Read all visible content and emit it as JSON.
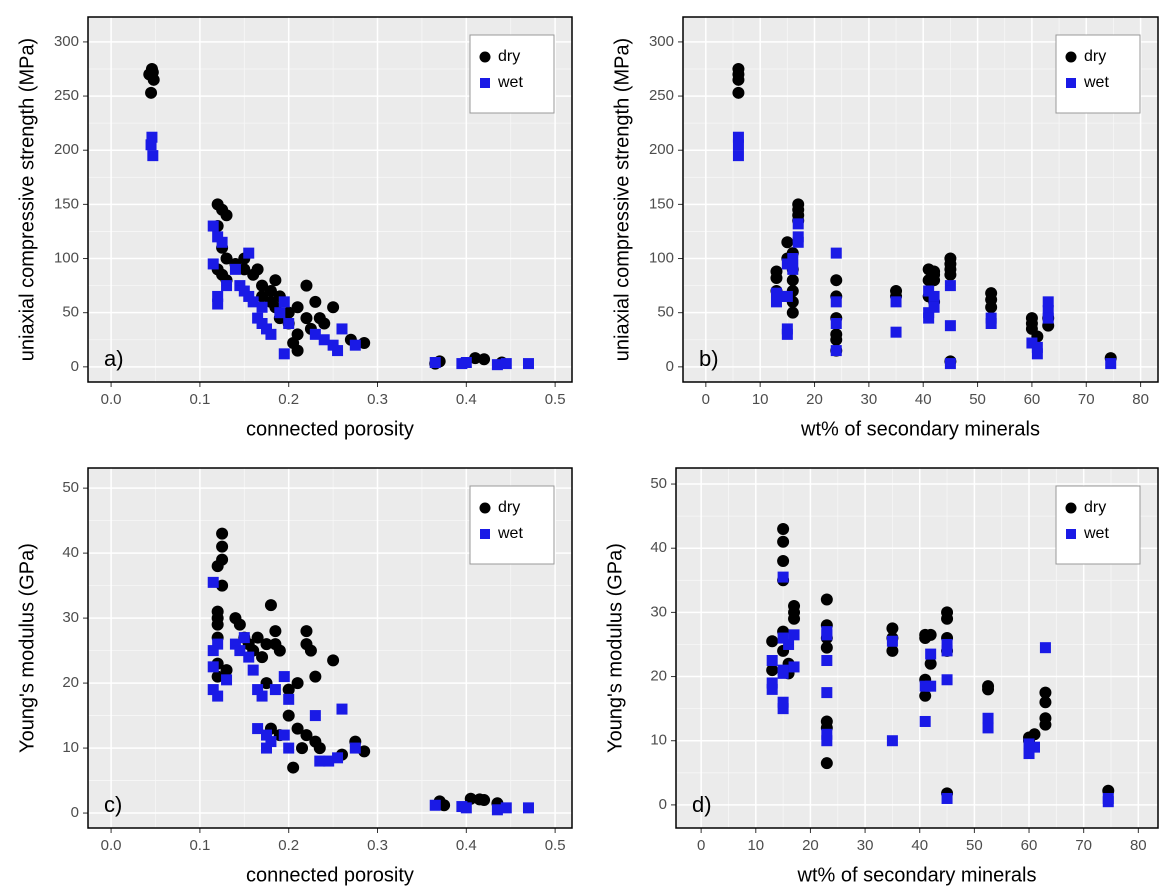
{
  "chart_data": [
    {
      "type": "scatter",
      "annotation": "a)",
      "x_label": "connected porosity",
      "y_label": "uniaxial compressive strength (MPa)",
      "xlim": [
        -0.026,
        0.519
      ],
      "xticks": [
        {
          "value": 0,
          "label": "0.0"
        },
        0.1,
        0.2,
        0.3,
        0.4,
        0.5
      ],
      "ylim": [
        -14,
        323
      ],
      "yticks": [
        0,
        50,
        100,
        150,
        200,
        250,
        300
      ],
      "grid": true,
      "legend": "top-right",
      "series": [
        {
          "name": "dry",
          "color": "#000000",
          "marker": "circle",
          "x": [
            0.043,
            0.046,
            0.047,
            0.048,
            0.045,
            0.12,
            0.125,
            0.13,
            0.12,
            0.125,
            0.13,
            0.12,
            0.125,
            0.13,
            0.14,
            0.15,
            0.15,
            0.16,
            0.165,
            0.17,
            0.17,
            0.18,
            0.18,
            0.185,
            0.185,
            0.19,
            0.19,
            0.2,
            0.2,
            0.21,
            0.21,
            0.22,
            0.22,
            0.225,
            0.23,
            0.235,
            0.24,
            0.25,
            0.27,
            0.285,
            0.21,
            0.205,
            0.37,
            0.365,
            0.41,
            0.42,
            0.44
          ],
          "values": [
            270,
            275,
            272,
            265,
            253,
            150,
            145,
            140,
            130,
            110,
            100,
            90,
            85,
            80,
            95,
            100,
            90,
            85,
            90,
            75,
            65,
            70,
            60,
            55,
            80,
            65,
            45,
            50,
            40,
            55,
            30,
            75,
            45,
            35,
            60,
            45,
            40,
            55,
            25,
            22,
            15,
            22,
            5,
            3,
            8,
            7,
            4
          ]
        },
        {
          "name": "wet",
          "color": "#1a1ae6",
          "marker": "square",
          "x": [
            0.046,
            0.045,
            0.047,
            0.115,
            0.12,
            0.125,
            0.115,
            0.12,
            0.12,
            0.13,
            0.14,
            0.145,
            0.15,
            0.155,
            0.155,
            0.16,
            0.165,
            0.17,
            0.17,
            0.175,
            0.18,
            0.19,
            0.195,
            0.195,
            0.2,
            0.23,
            0.24,
            0.25,
            0.255,
            0.26,
            0.275,
            0.365,
            0.395,
            0.4,
            0.435,
            0.445,
            0.47
          ],
          "values": [
            212,
            205,
            195,
            130,
            120,
            115,
            95,
            65,
            58,
            75,
            90,
            75,
            70,
            65,
            105,
            60,
            45,
            55,
            40,
            35,
            30,
            50,
            60,
            12,
            40,
            30,
            25,
            20,
            15,
            35,
            20,
            4,
            3,
            4,
            2,
            3,
            3
          ]
        }
      ]
    },
    {
      "type": "scatter",
      "annotation": "b)",
      "x_label": "wt% of secondary minerals",
      "y_label": "uniaxial compressive strength (MPa)",
      "xlim": [
        -4.2,
        83.2
      ],
      "xticks": [
        0,
        10,
        20,
        30,
        40,
        50,
        60,
        70,
        80
      ],
      "ylim": [
        -14,
        323
      ],
      "yticks": [
        0,
        50,
        100,
        150,
        200,
        250,
        300
      ],
      "grid": true,
      "legend": "top-right",
      "series": [
        {
          "name": "dry",
          "color": "#000000",
          "marker": "circle",
          "x": [
            6,
            6,
            6,
            6,
            13,
            13,
            13,
            15,
            15,
            16,
            16,
            16,
            16,
            16,
            16,
            17,
            17,
            17,
            17,
            24,
            24,
            24,
            24,
            24,
            24,
            35,
            35,
            41,
            41,
            41,
            42,
            42,
            42,
            42,
            45,
            45,
            45,
            45,
            45,
            52.5,
            52.5,
            52.5,
            60,
            60,
            60,
            61,
            63,
            63,
            74.5
          ],
          "values": [
            275,
            270,
            265,
            253,
            88,
            82,
            70,
            115,
            100,
            105,
            90,
            80,
            70,
            60,
            50,
            150,
            145,
            140,
            135,
            80,
            65,
            45,
            30,
            25,
            15,
            70,
            65,
            90,
            80,
            65,
            88,
            85,
            80,
            60,
            100,
            95,
            90,
            85,
            5,
            68,
            62,
            55,
            45,
            40,
            35,
            28,
            45,
            38,
            8
          ]
        },
        {
          "name": "wet",
          "color": "#1a1ae6",
          "marker": "square",
          "x": [
            6,
            6,
            6,
            13,
            13,
            14,
            15,
            15,
            15,
            15,
            16,
            16,
            17,
            17,
            17,
            24,
            24,
            24,
            24,
            35,
            35,
            41,
            41,
            41,
            42,
            42,
            45,
            45,
            45,
            52.5,
            52.5,
            60,
            61,
            61,
            63,
            63,
            63,
            74.5
          ],
          "values": [
            212,
            205,
            195,
            68,
            60,
            65,
            95,
            65,
            35,
            30,
            100,
            90,
            132,
            120,
            115,
            105,
            60,
            40,
            15,
            60,
            32,
            70,
            50,
            45,
            65,
            55,
            75,
            38,
            3,
            45,
            40,
            22,
            12,
            18,
            60,
            52,
            45,
            3
          ]
        }
      ]
    },
    {
      "type": "scatter",
      "annotation": "c)",
      "x_label": "connected porosity",
      "y_label": "Young's modulus (GPa)",
      "xlim": [
        -0.026,
        0.519
      ],
      "xticks": [
        {
          "value": 0,
          "label": "0.0"
        },
        0.1,
        0.2,
        0.3,
        0.4,
        0.5
      ],
      "ylim": [
        -2.3,
        53.1
      ],
      "yticks": [
        0,
        10,
        20,
        30,
        40,
        50
      ],
      "grid": true,
      "legend": "top-right",
      "series": [
        {
          "name": "dry",
          "color": "#000000",
          "marker": "circle",
          "x": [
            0.125,
            0.125,
            0.125,
            0.12,
            0.125,
            0.12,
            0.12,
            0.12,
            0.12,
            0.12,
            0.12,
            0.13,
            0.14,
            0.145,
            0.15,
            0.155,
            0.16,
            0.165,
            0.17,
            0.175,
            0.18,
            0.185,
            0.185,
            0.19,
            0.175,
            0.18,
            0.19,
            0.2,
            0.2,
            0.21,
            0.21,
            0.22,
            0.22,
            0.225,
            0.23,
            0.25,
            0.205,
            0.215,
            0.22,
            0.23,
            0.235,
            0.26,
            0.275,
            0.285,
            0.37,
            0.375,
            0.405,
            0.415,
            0.42,
            0.435
          ],
          "values": [
            43,
            41,
            39,
            38,
            35,
            31,
            30,
            29,
            27,
            23,
            21,
            22,
            30,
            29,
            27,
            26,
            25,
            27,
            24,
            26,
            32,
            28,
            26,
            25,
            20,
            13,
            12,
            19,
            15,
            20,
            13,
            26,
            28,
            25,
            21,
            23.5,
            7,
            10,
            12,
            11,
            10,
            9,
            11,
            9.5,
            1.8,
            1.2,
            2.2,
            2.1,
            2,
            1.5
          ]
        },
        {
          "name": "wet",
          "color": "#1a1ae6",
          "marker": "square",
          "x": [
            0.115,
            0.115,
            0.12,
            0.115,
            0.115,
            0.12,
            0.13,
            0.14,
            0.145,
            0.15,
            0.155,
            0.16,
            0.165,
            0.165,
            0.17,
            0.175,
            0.175,
            0.18,
            0.185,
            0.195,
            0.195,
            0.2,
            0.2,
            0.23,
            0.235,
            0.245,
            0.255,
            0.26,
            0.275,
            0.365,
            0.395,
            0.4,
            0.435,
            0.445,
            0.47
          ],
          "values": [
            35.5,
            25,
            26,
            22.5,
            19,
            18,
            20.5,
            26,
            25,
            27,
            24,
            22,
            19,
            13,
            18,
            10,
            12,
            11,
            19,
            21,
            12,
            17.5,
            10,
            15,
            8,
            8,
            8.5,
            16,
            10,
            1.2,
            1,
            0.8,
            0.5,
            0.8,
            0.8
          ]
        }
      ]
    },
    {
      "type": "scatter",
      "annotation": "d)",
      "x_label": "wt% of secondary minerals",
      "y_label": "Young's modulus (GPa)",
      "xlim": [
        -4.6,
        83.6
      ],
      "xticks": [
        0,
        10,
        20,
        30,
        40,
        50,
        60,
        70,
        80
      ],
      "ylim": [
        -3.6,
        52.5
      ],
      "yticks": [
        0,
        10,
        20,
        30,
        40,
        50
      ],
      "grid": true,
      "legend": "top-right",
      "series": [
        {
          "name": "dry",
          "color": "#000000",
          "marker": "circle",
          "x": [
            13,
            13,
            15,
            15,
            15,
            15,
            15,
            15,
            16,
            16,
            17,
            17,
            17,
            23,
            23,
            23,
            23,
            23,
            23,
            23,
            35,
            35,
            35,
            41,
            41,
            41,
            41,
            42,
            42,
            45,
            45,
            45,
            45,
            45,
            52.5,
            52.5,
            60,
            60,
            61,
            63,
            63,
            63,
            63,
            74.5
          ],
          "values": [
            25.5,
            21,
            43,
            41,
            38,
            35,
            27,
            24,
            22,
            20.5,
            31,
            30,
            29,
            32,
            28,
            26,
            24.5,
            13,
            12,
            6.5,
            27.5,
            26,
            24,
            26.5,
            26,
            19.5,
            17,
            26.5,
            22,
            30,
            29,
            26,
            24,
            1.8,
            18.5,
            18,
            10.5,
            10,
            11,
            17.5,
            16,
            13.5,
            12.5,
            2.2
          ]
        },
        {
          "name": "wet",
          "color": "#1a1ae6",
          "marker": "square",
          "x": [
            13,
            13,
            13,
            15,
            15,
            15,
            15,
            15,
            15,
            16,
            17,
            17,
            23,
            23,
            23,
            23,
            23,
            23,
            35,
            35,
            41,
            41,
            42,
            42,
            45,
            45,
            45,
            45,
            52.5,
            52.5,
            60,
            60,
            61,
            63,
            74.5,
            74.5
          ],
          "values": [
            22.5,
            19,
            18,
            35.5,
            26,
            21,
            20.5,
            16,
            15,
            25,
            26.5,
            21.5,
            27,
            26.5,
            22.5,
            17.5,
            11,
            10,
            25.5,
            10,
            18.5,
            13,
            23.5,
            18.5,
            25,
            24,
            19.5,
            1,
            13.5,
            12,
            8,
            9.5,
            9,
            24.5,
            1,
            0.5
          ]
        }
      ]
    }
  ]
}
